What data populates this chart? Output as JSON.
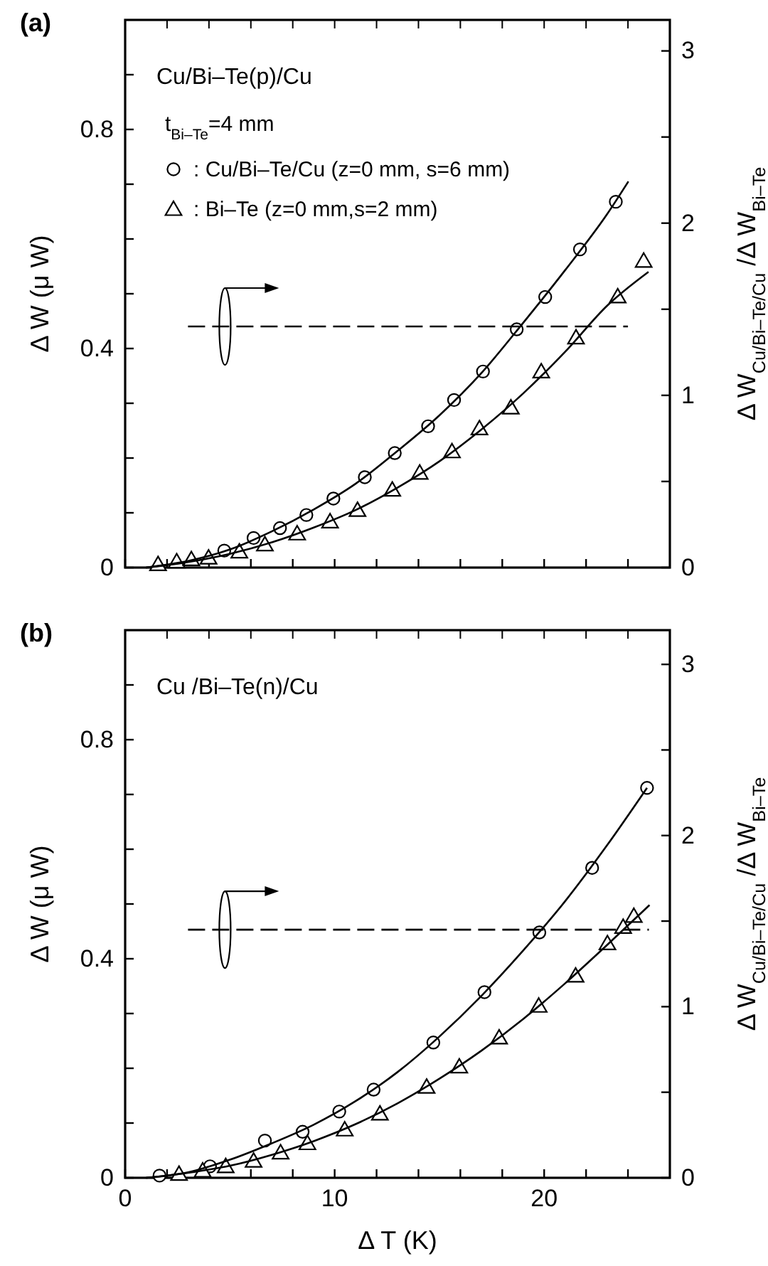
{
  "chart_data": [
    {
      "type": "scatter",
      "title": "(a)",
      "annotations": [
        "Cu/Bi–Te(p)/Cu",
        "t$_{Bi–Te}$=4 mm"
      ],
      "ylabel": "Δ W (μ W)",
      "y2label": "Δ W$_{Cu/Bi–Te/Cu}$ /Δ W$_{Bi–Te}$",
      "legend": "top left",
      "tick_labels": "y",
      "xlim": [
        0,
        26
      ],
      "xticks": [
        0,
        {
          "value": 2,
          "label": null
        },
        {
          "value": 4,
          "label": null
        },
        {
          "value": 6,
          "label": null
        },
        {
          "value": 8,
          "label": null
        },
        10,
        {
          "value": 12,
          "label": null
        },
        {
          "value": 14,
          "label": null
        },
        {
          "value": 16,
          "label": null
        },
        {
          "value": 18,
          "label": null
        },
        20,
        {
          "value": 22,
          "label": null
        },
        {
          "value": 24,
          "label": null
        }
      ],
      "ylim": [
        0,
        1.0
      ],
      "yticks": [
        0,
        {
          "value": 0.1,
          "label": null
        },
        {
          "value": 0.2,
          "label": null
        },
        {
          "value": 0.3,
          "label": null
        },
        0.4,
        {
          "value": 0.5,
          "label": null
        },
        {
          "value": 0.6,
          "label": null
        },
        {
          "value": 0.7,
          "label": null
        },
        0.8,
        {
          "value": 0.9,
          "label": null
        }
      ],
      "y2lim": [
        0,
        3.18
      ],
      "y2ticks": [
        0,
        {
          "value": 0.5,
          "label": null
        },
        1,
        {
          "value": 1.5,
          "label": null
        },
        2,
        {
          "value": 2.5,
          "label": null
        },
        3
      ],
      "series": [
        {
          "name": ": Cu/Bi–Te/Cu (z=0 mm, s=6 mm)",
          "marker": "circle",
          "color": "#000000",
          "x": [
            4.73,
            6.13,
            7.39,
            8.65,
            9.94,
            11.44,
            12.87,
            14.46,
            15.7,
            17.08,
            18.69,
            20.05,
            21.71,
            23.42
          ],
          "values": [
            0.031,
            0.054,
            0.072,
            0.096,
            0.126,
            0.165,
            0.209,
            0.258,
            0.306,
            0.358,
            0.435,
            0.494,
            0.581,
            0.668
          ]
        },
        {
          "name": ": Bi–Te (z=0 mm,s=2 mm)",
          "marker": "triangle",
          "color": "#000000",
          "x": [
            1.57,
            2.46,
            3.16,
            3.98,
            5.45,
            6.67,
            8.21,
            9.78,
            11.09,
            12.75,
            14.06,
            15.6,
            16.91,
            18.41,
            19.86,
            21.52,
            23.51,
            24.75
          ],
          "values": [
            0.006,
            0.011,
            0.015,
            0.018,
            0.029,
            0.042,
            0.062,
            0.084,
            0.105,
            0.142,
            0.173,
            0.212,
            0.254,
            0.292,
            0.358,
            0.42,
            0.495,
            0.56
          ]
        },
        {
          "type": "line",
          "marker": "none",
          "color": "#000000",
          "x": [
            1,
            3,
            5,
            7,
            9,
            11,
            13,
            15,
            17,
            19,
            21,
            23,
            24.02
          ],
          "values": [
            0,
            0.012,
            0.033,
            0.066,
            0.106,
            0.153,
            0.213,
            0.278,
            0.355,
            0.447,
            0.543,
            0.645,
            0.705
          ]
        },
        {
          "type": "line",
          "marker": "none",
          "color": "#000000",
          "x": [
            1,
            3,
            5,
            7,
            9,
            11,
            13,
            15,
            17,
            19,
            21,
            23,
            24.98
          ],
          "values": [
            0,
            0.01,
            0.025,
            0.046,
            0.073,
            0.105,
            0.146,
            0.194,
            0.252,
            0.318,
            0.394,
            0.478,
            0.54
          ]
        },
        {
          "type": "line",
          "marker": "none",
          "axis": "y2",
          "line_style": "dashed",
          "color": "#000000",
          "x": [
            3,
            24
          ],
          "values": [
            1.4,
            1.4
          ]
        }
      ]
    },
    {
      "type": "scatter",
      "title": "(b)",
      "annotations": [
        "Cu /Bi–Te(n)/Cu"
      ],
      "xlabel": "Δ T (K)",
      "ylabel": "Δ W (μ W)",
      "y2label": "Δ W$_{Cu/Bi–Te/Cu}$ /Δ W$_{Bi–Te}$",
      "xlim": [
        0,
        26
      ],
      "xticks": [
        0,
        {
          "value": 2,
          "label": null
        },
        {
          "value": 4,
          "label": null
        },
        {
          "value": 6,
          "label": null
        },
        {
          "value": 8,
          "label": null
        },
        10,
        {
          "value": 12,
          "label": null
        },
        {
          "value": 14,
          "label": null
        },
        {
          "value": 16,
          "label": null
        },
        {
          "value": 18,
          "label": null
        },
        20,
        {
          "value": 22,
          "label": null
        },
        {
          "value": 24,
          "label": null
        }
      ],
      "ylim": [
        0,
        1.0
      ],
      "yticks": [
        0,
        {
          "value": 0.1,
          "label": null
        },
        {
          "value": 0.2,
          "label": null
        },
        {
          "value": 0.3,
          "label": null
        },
        0.4,
        {
          "value": 0.5,
          "label": null
        },
        {
          "value": 0.6,
          "label": null
        },
        {
          "value": 0.7,
          "label": null
        },
        0.8,
        {
          "value": 0.9,
          "label": null
        }
      ],
      "y2lim": [
        0,
        3.2
      ],
      "y2ticks": [
        0,
        {
          "value": 0.5,
          "label": null
        },
        1,
        {
          "value": 1.5,
          "label": null
        },
        2,
        {
          "value": 2.5,
          "label": null
        },
        3
      ],
      "series": [
        {
          "marker": "circle",
          "color": "#000000",
          "x": [
            1.64,
            4.05,
            6.67,
            8.47,
            10.22,
            11.86,
            14.71,
            17.15,
            19.77,
            22.29,
            24.91
          ],
          "values": [
            0.004,
            0.021,
            0.068,
            0.084,
            0.121,
            0.161,
            0.247,
            0.339,
            0.448,
            0.566,
            0.712
          ]
        },
        {
          "marker": "triangle",
          "color": "#000000",
          "x": [
            2.57,
            3.7,
            4.8,
            6.13,
            7.42,
            8.7,
            10.48,
            12.16,
            14.39,
            15.95,
            17.85,
            19.74,
            21.5,
            23.02,
            23.77,
            24.28
          ],
          "values": [
            0.007,
            0.013,
            0.021,
            0.031,
            0.046,
            0.063,
            0.088,
            0.117,
            0.166,
            0.203,
            0.256,
            0.314,
            0.369,
            0.428,
            0.458,
            0.478
          ]
        },
        {
          "type": "line",
          "marker": "none",
          "color": "#000000",
          "x": [
            1,
            3,
            5,
            7,
            9,
            11,
            13,
            15,
            17,
            19,
            21,
            23,
            24.91
          ],
          "values": [
            0,
            0.01,
            0.033,
            0.063,
            0.097,
            0.14,
            0.193,
            0.258,
            0.332,
            0.415,
            0.505,
            0.607,
            0.712
          ]
        },
        {
          "type": "line",
          "marker": "none",
          "color": "#000000",
          "x": [
            1,
            3,
            5,
            7,
            9,
            11,
            13,
            15,
            17,
            19,
            21,
            23,
            25.03
          ],
          "values": [
            0,
            0.009,
            0.022,
            0.042,
            0.067,
            0.098,
            0.136,
            0.181,
            0.232,
            0.29,
            0.355,
            0.425,
            0.498
          ]
        },
        {
          "type": "line",
          "marker": "none",
          "axis": "y2",
          "line_style": "dashed",
          "color": "#000000",
          "x": [
            3,
            25
          ],
          "values": [
            1.45,
            1.45
          ]
        }
      ]
    }
  ]
}
